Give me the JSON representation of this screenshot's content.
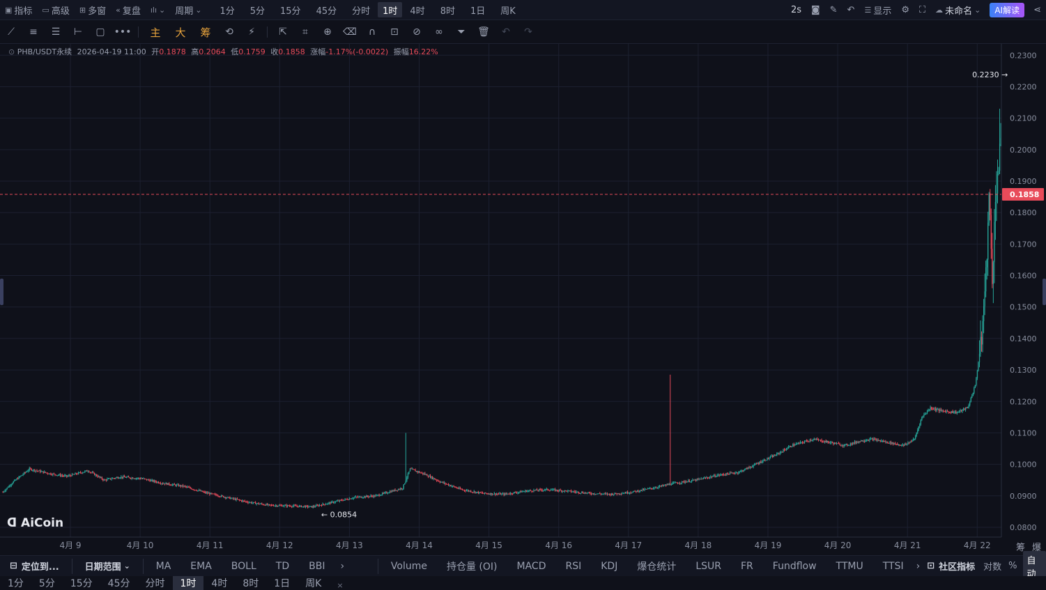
{
  "topbar": {
    "items": [
      {
        "icon": "indicator-icon",
        "label": "指标"
      },
      {
        "icon": "advanced-icon",
        "label": "高级"
      },
      {
        "icon": "multi-window-icon",
        "label": "多窗"
      },
      {
        "icon": "replay-icon",
        "label": "复盘"
      },
      {
        "icon": "candle-type-icon",
        "label": ""
      },
      {
        "icon": "",
        "label": "周期"
      }
    ],
    "periods": [
      "1分",
      "5分",
      "15分",
      "45分",
      "分时",
      "1时",
      "4时",
      "8时",
      "1日",
      "周K"
    ],
    "active_period": "1时",
    "refresh": "2s",
    "display_label": "显示",
    "layout_name": "未命名",
    "ai_label": "AI解读"
  },
  "toolbar2": {
    "gold_labels": [
      "主",
      "大",
      "筹"
    ]
  },
  "info": {
    "symbol": "PHB/USDT永续",
    "datetime": "2026-04-19 11:00",
    "open_label": "开",
    "open": "0.1878",
    "high_label": "高",
    "high": "0.2064",
    "low_label": "低",
    "low": "0.1759",
    "close_label": "收",
    "close": "0.1858",
    "change_label": "涨幅",
    "change": "-1.17%(-0.0022)",
    "amp_label": "振幅",
    "amp": "16.22%"
  },
  "chart_data": {
    "type": "candlestick",
    "x_labels": [
      "4月 9",
      "4月 10",
      "4月 11",
      "4月 12",
      "4月 13",
      "4月 14",
      "4月 15",
      "4月 16",
      "4月 17",
      "4月 18",
      "4月 19",
      "4月 20",
      "4月 21",
      "4月 22"
    ],
    "y_ticks": [
      "0.2300",
      "0.2200",
      "0.2100",
      "0.2000",
      "0.1900",
      "0.1800",
      "0.1700",
      "0.1600",
      "0.1500",
      "0.1400",
      "0.1300",
      "0.1200",
      "0.1100",
      "0.1000",
      "0.0900",
      "0.0800"
    ],
    "ylim": [
      0.078,
      0.2325
    ],
    "last_price": "0.1858",
    "max_label": "0.2230 →",
    "min_label": "← 0.0854",
    "up_color": "#26a69a",
    "down_color": "#e84b5a",
    "anchors": [
      [
        0,
        0.0912
      ],
      [
        10,
        0.0945
      ],
      [
        25,
        0.0985
      ],
      [
        45,
        0.097
      ],
      [
        60,
        0.0962
      ],
      [
        80,
        0.098
      ],
      [
        95,
        0.095
      ],
      [
        110,
        0.096
      ],
      [
        130,
        0.0955
      ],
      [
        150,
        0.094
      ],
      [
        170,
        0.093
      ],
      [
        190,
        0.091
      ],
      [
        210,
        0.0895
      ],
      [
        230,
        0.088
      ],
      [
        250,
        0.087
      ],
      [
        270,
        0.0868
      ],
      [
        290,
        0.0865
      ],
      [
        310,
        0.088
      ],
      [
        330,
        0.0895
      ],
      [
        350,
        0.09
      ],
      [
        365,
        0.0915
      ],
      [
        375,
        0.0925
      ],
      [
        382,
        0.0985
      ],
      [
        395,
        0.097
      ],
      [
        410,
        0.0945
      ],
      [
        430,
        0.092
      ],
      [
        450,
        0.0908
      ],
      [
        470,
        0.0905
      ],
      [
        490,
        0.0915
      ],
      [
        510,
        0.092
      ],
      [
        530,
        0.0915
      ],
      [
        550,
        0.0908
      ],
      [
        570,
        0.0905
      ],
      [
        590,
        0.0912
      ],
      [
        610,
        0.0925
      ],
      [
        630,
        0.094
      ],
      [
        650,
        0.095
      ],
      [
        670,
        0.0965
      ],
      [
        690,
        0.0975
      ],
      [
        700,
        0.099
      ],
      [
        712,
        0.101
      ],
      [
        725,
        0.103
      ],
      [
        740,
        0.106
      ],
      [
        760,
        0.108
      ],
      [
        775,
        0.107
      ],
      [
        790,
        0.106
      ],
      [
        805,
        0.1075
      ],
      [
        815,
        0.108
      ],
      [
        830,
        0.107
      ],
      [
        845,
        0.106
      ],
      [
        855,
        0.108
      ],
      [
        862,
        0.115
      ],
      [
        870,
        0.118
      ],
      [
        880,
        0.117
      ],
      [
        895,
        0.1165
      ],
      [
        905,
        0.118
      ],
      [
        912,
        0.125
      ],
      [
        918,
        0.14
      ],
      [
        922,
        0.16
      ],
      [
        925,
        0.185
      ],
      [
        928,
        0.16
      ],
      [
        932,
        0.19
      ],
      [
        936,
        0.2
      ],
      [
        940,
        0.188
      ],
      [
        944,
        0.1858
      ]
    ]
  },
  "bottombar": {
    "locate": "定位到...",
    "date_range": "日期范围",
    "indicators": [
      "MA",
      "EMA",
      "BOLL",
      "TD",
      "BBI"
    ],
    "sub_indicators": [
      "Volume",
      "持仓量 (OI)",
      "MACD",
      "RSI",
      "KDJ",
      "爆仓统计",
      "LSUR",
      "FR",
      "Fundflow",
      "TTMU",
      "TTSI"
    ],
    "community": "社区指标",
    "log": "对数",
    "pct": "%",
    "auto": "自动"
  },
  "periodbar": {
    "items": [
      "1分",
      "5分",
      "15分",
      "45分",
      "分时",
      "1时",
      "4时",
      "8时",
      "1日",
      "周K"
    ],
    "active": "1时"
  },
  "brand": "AiCoin",
  "right_labels": [
    "筹",
    "爆"
  ]
}
